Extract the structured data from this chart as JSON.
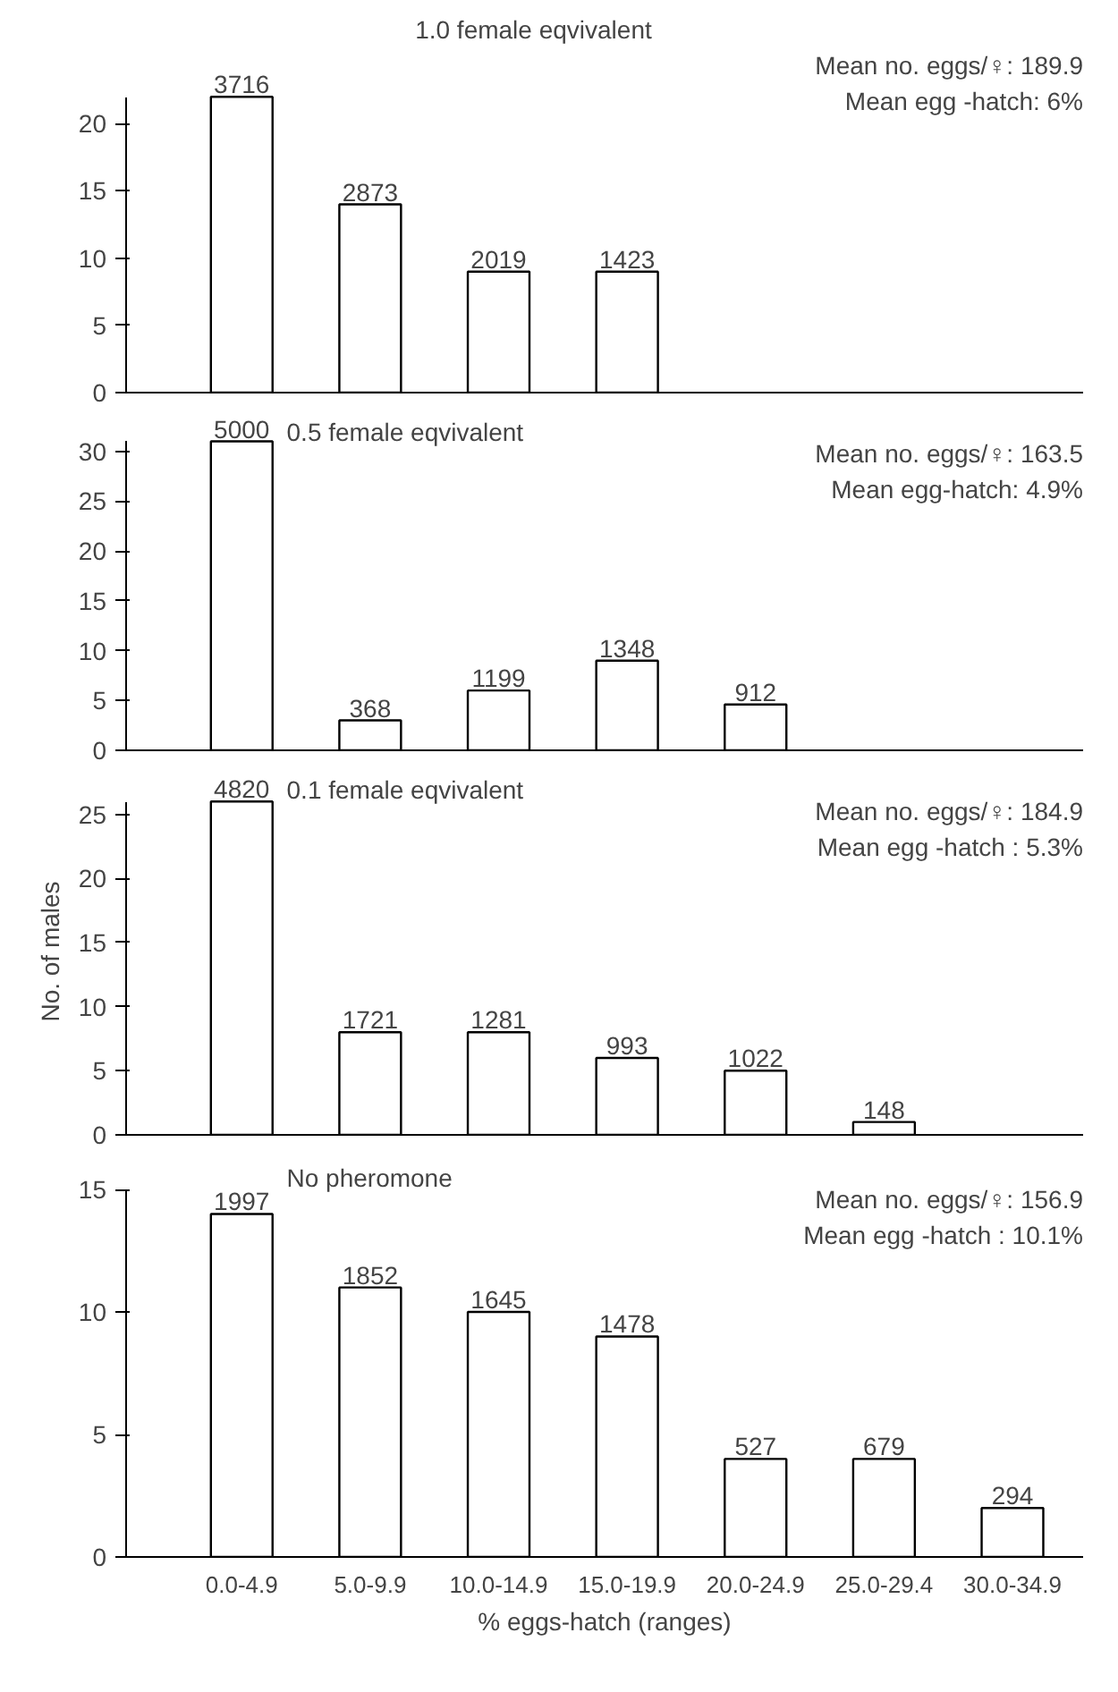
{
  "chart_data": [
    {
      "type": "bar",
      "title": "1.0 female eqvivalent",
      "categories": [
        "0.0-4.9",
        "5.0-9.9",
        "10.0-14.9",
        "15.0-19.9",
        "20.0-24.9",
        "25.0-29.4",
        "30.0-34.9"
      ],
      "values": [
        22,
        14,
        9,
        9,
        null,
        null,
        null
      ],
      "color": "#ffffff",
      "ylim": [
        0,
        22
      ],
      "yticks": [
        0,
        5,
        10,
        15,
        20
      ],
      "grid": false,
      "tick_labels": "y",
      "annotations": [
        "Mean no. eggs/♀: 189.9",
        "Mean egg -hatch: 6%",
        {
          "text": "3716",
          "x": "0.0-4.9",
          "y": 22
        },
        {
          "text": "2873",
          "x": "5.0-9.9",
          "y": 14
        },
        {
          "text": "2019",
          "x": "10.0-14.9",
          "y": 9
        },
        {
          "text": "1423",
          "x": "15.0-19.9",
          "y": 9
        }
      ]
    },
    {
      "type": "bar",
      "title": "0.5 female eqvivalent",
      "categories": [
        "0.0-4.9",
        "5.0-9.9",
        "10.0-14.9",
        "15.0-19.9",
        "20.0-24.9",
        "25.0-29.4",
        "30.0-34.9"
      ],
      "values": [
        31,
        3,
        6,
        9,
        4.6,
        null,
        null
      ],
      "color": "#ffffff",
      "ylim": [
        0,
        31
      ],
      "yticks": [
        0,
        5,
        10,
        15,
        20,
        25,
        30
      ],
      "grid": false,
      "tick_labels": "y",
      "annotations": [
        "Mean no. eggs/♀: 163.5",
        "Mean egg-hatch: 4.9%",
        {
          "text": "5000",
          "x": "0.0-4.9",
          "y": 31
        },
        {
          "text": "368",
          "x": "5.0-9.9",
          "y": 3
        },
        {
          "text": "1199",
          "x": "10.0-14.9",
          "y": 6
        },
        {
          "text": "1348",
          "x": "15.0-19.9",
          "y": 9
        },
        {
          "text": "912",
          "x": "20.0-24.9",
          "y": 4.6
        }
      ]
    },
    {
      "type": "bar",
      "title": "0.1 female eqvivalent",
      "ylabel": "No. of males",
      "categories": [
        "0.0-4.9",
        "5.0-9.9",
        "10.0-14.9",
        "15.0-19.9",
        "20.0-24.9",
        "25.0-29.4",
        "30.0-34.9"
      ],
      "values": [
        26,
        8,
        8,
        6,
        5,
        1,
        null
      ],
      "color": "#ffffff",
      "ylim": [
        0,
        26
      ],
      "yticks": [
        0,
        5,
        10,
        15,
        20,
        25
      ],
      "grid": false,
      "tick_labels": "y",
      "annotations": [
        "Mean no. eggs/♀: 184.9",
        "Mean egg -hatch : 5.3%",
        {
          "text": "4820",
          "x": "0.0-4.9",
          "y": 26
        },
        {
          "text": "1721",
          "x": "5.0-9.9",
          "y": 8
        },
        {
          "text": "1281",
          "x": "10.0-14.9",
          "y": 8
        },
        {
          "text": "993",
          "x": "15.0-19.9",
          "y": 6
        },
        {
          "text": "1022",
          "x": "20.0-24.9",
          "y": 5
        },
        {
          "text": "148",
          "x": "25.0-29.4",
          "y": 1
        }
      ]
    },
    {
      "type": "bar",
      "title": "No pheromone",
      "xlabel": "% eggs-hatch (ranges)",
      "categories": [
        "0.0-4.9",
        "5.0-9.9",
        "10.0-14.9",
        "15.0-19.9",
        "20.0-24.9",
        "25.0-29.4",
        "30.0-34.9"
      ],
      "values": [
        14,
        11,
        10,
        9,
        4,
        4,
        2
      ],
      "color": "#ffffff",
      "ylim": [
        0,
        15
      ],
      "yticks": [
        0,
        5,
        10,
        15
      ],
      "grid": false,
      "annotations": [
        "Mean no. eggs/♀: 156.9",
        "Mean egg -hatch : 10.1%",
        {
          "text": "1997",
          "x": "0.0-4.9",
          "y": 14
        },
        {
          "text": "1852",
          "x": "5.0-9.9",
          "y": 11
        },
        {
          "text": "1645",
          "x": "10.0-14.9",
          "y": 10
        },
        {
          "text": "1478",
          "x": "15.0-19.9",
          "y": 9
        },
        {
          "text": "527",
          "x": "20.0-24.9",
          "y": 4
        },
        {
          "text": "679",
          "x": "25.0-29.4",
          "y": 4
        },
        {
          "text": "294",
          "x": "30.0-34.9",
          "y": 2
        }
      ]
    }
  ]
}
